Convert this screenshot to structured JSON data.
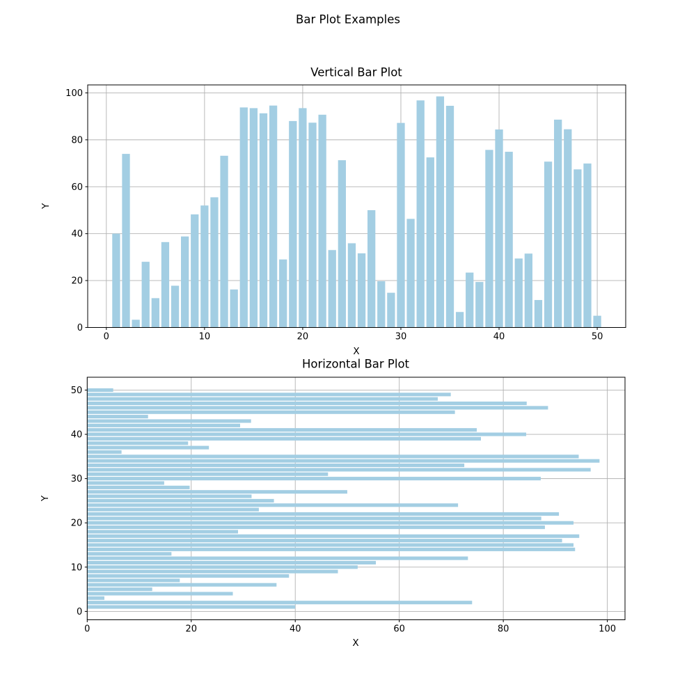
{
  "figure": {
    "title": "Bar Plot Examples",
    "background_color": "#ffffff",
    "text_color": "#000000"
  },
  "colors": {
    "bar_fill": "#a3cee3",
    "grid_line": "#b2b2b2",
    "spine": "#000000",
    "tick": "#000000"
  },
  "chart_data": [
    {
      "type": "bar",
      "title": "Vertical Bar Plot",
      "xlabel": "X",
      "ylabel": "Y",
      "grid": true,
      "legend": null,
      "bar_color": "#a3cee3",
      "bar_width": 0.8,
      "xlim": [
        -1.9,
        52.9
      ],
      "ylim": [
        0,
        103.4
      ],
      "xticks": [
        0,
        10,
        20,
        30,
        40,
        50
      ],
      "yticks": [
        0,
        20,
        40,
        60,
        80,
        100
      ],
      "x": [
        1,
        2,
        3,
        4,
        5,
        6,
        7,
        8,
        9,
        10,
        11,
        12,
        13,
        14,
        15,
        16,
        17,
        18,
        19,
        20,
        21,
        22,
        23,
        24,
        25,
        26,
        27,
        28,
        29,
        30,
        31,
        32,
        33,
        34,
        35,
        36,
        37,
        38,
        39,
        40,
        41,
        42,
        43,
        44,
        45,
        46,
        47,
        48,
        49,
        50
      ],
      "values": [
        40.0,
        74.0,
        3.3,
        28.0,
        12.5,
        36.4,
        17.8,
        38.8,
        48.2,
        52.0,
        55.5,
        73.2,
        16.2,
        93.8,
        93.5,
        91.3,
        94.6,
        29.0,
        88.0,
        93.5,
        87.3,
        90.7,
        33.0,
        71.3,
        35.9,
        31.6,
        50.0,
        19.7,
        14.8,
        87.2,
        46.3,
        96.8,
        72.5,
        98.5,
        94.5,
        6.6,
        23.4,
        19.4,
        75.7,
        84.4,
        74.9,
        29.4,
        31.5,
        11.7,
        70.7,
        88.6,
        84.5,
        67.4,
        69.9,
        5.0
      ]
    },
    {
      "type": "horizontal_bar",
      "title": "Horizontal Bar Plot",
      "xlabel": "X",
      "ylabel": "Y",
      "grid": true,
      "legend": null,
      "bar_color": "#a3cee3",
      "bar_height": 0.8,
      "xlim": [
        0,
        103.4
      ],
      "ylim": [
        -1.9,
        52.9
      ],
      "xticks": [
        0,
        20,
        40,
        60,
        80,
        100
      ],
      "yticks": [
        0,
        10,
        20,
        30,
        40,
        50
      ],
      "y": [
        1,
        2,
        3,
        4,
        5,
        6,
        7,
        8,
        9,
        10,
        11,
        12,
        13,
        14,
        15,
        16,
        17,
        18,
        19,
        20,
        21,
        22,
        23,
        24,
        25,
        26,
        27,
        28,
        29,
        30,
        31,
        32,
        33,
        34,
        35,
        36,
        37,
        38,
        39,
        40,
        41,
        42,
        43,
        44,
        45,
        46,
        47,
        48,
        49,
        50
      ],
      "values": [
        40.0,
        74.0,
        3.3,
        28.0,
        12.5,
        36.4,
        17.8,
        38.8,
        48.2,
        52.0,
        55.5,
        73.2,
        16.2,
        93.8,
        93.5,
        91.3,
        94.6,
        29.0,
        88.0,
        93.5,
        87.3,
        90.7,
        33.0,
        71.3,
        35.9,
        31.6,
        50.0,
        19.7,
        14.8,
        87.2,
        46.3,
        96.8,
        72.5,
        98.5,
        94.5,
        6.6,
        23.4,
        19.4,
        75.7,
        84.4,
        74.9,
        29.4,
        31.5,
        11.7,
        70.7,
        88.6,
        84.5,
        67.4,
        69.9,
        5.0
      ]
    }
  ]
}
